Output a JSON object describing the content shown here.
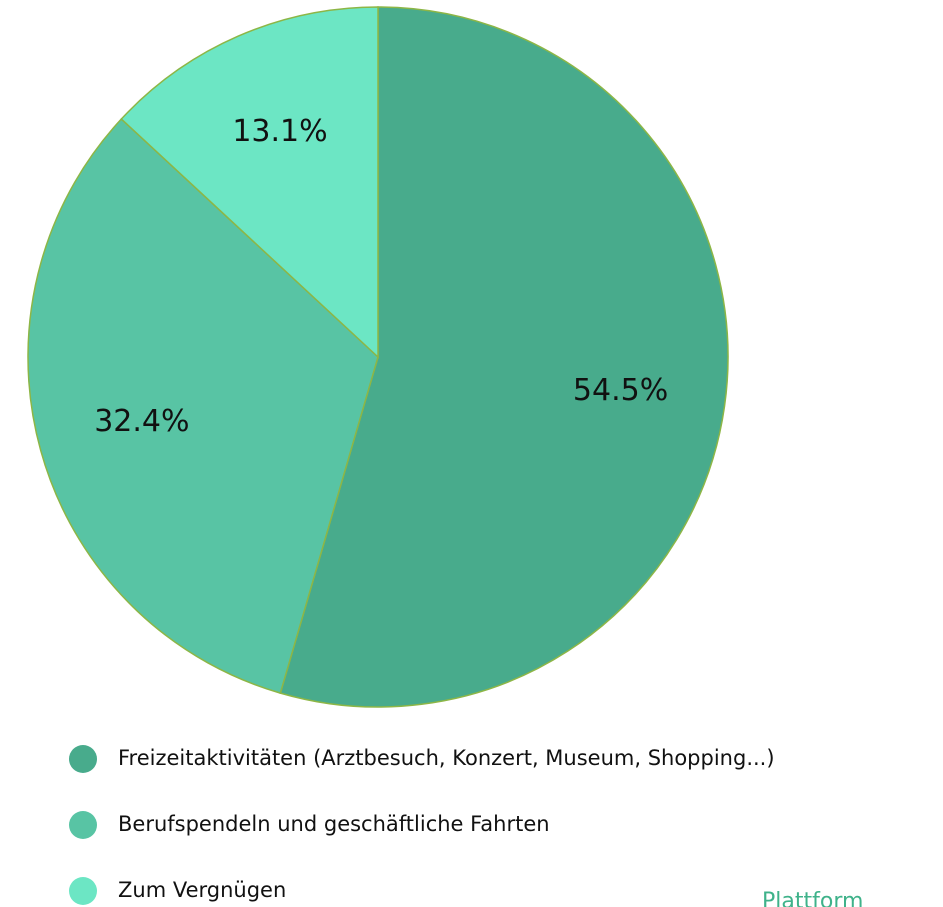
{
  "chart_data": {
    "type": "pie",
    "categories": [
      "Freizeitaktivitäten (Arztbesuch, Konzert, Museum, Shopping...)",
      "Berufspendeln und geschäftliche Fahrten",
      "Zum Vergnügen"
    ],
    "values": [
      54.5,
      32.4,
      13.1
    ],
    "value_labels": [
      "54.5%",
      "32.4%",
      "13.1%"
    ],
    "colors": [
      "#48ab8c",
      "#58c4a4",
      "#6ce6c4"
    ],
    "legend": "bottom"
  },
  "footer": {
    "logo_text": "Plattform"
  }
}
